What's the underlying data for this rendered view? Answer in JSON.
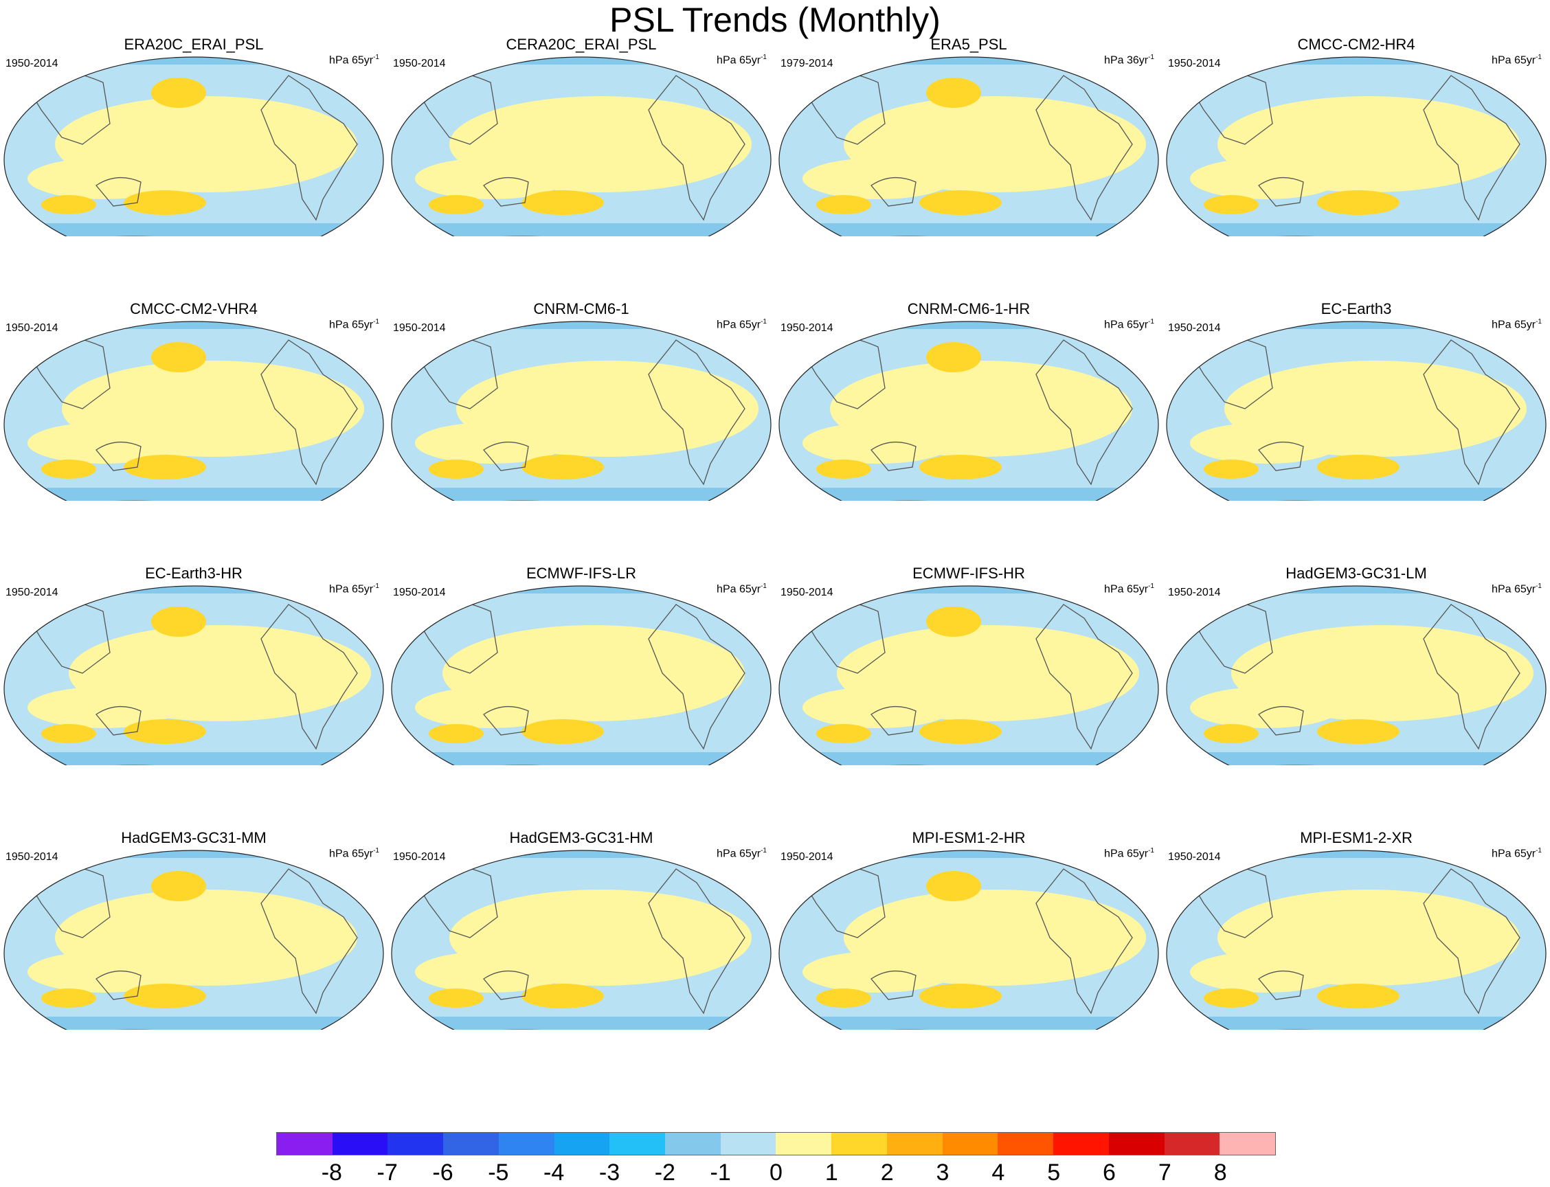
{
  "title": "PSL Trends (Monthly)",
  "panels": [
    {
      "name": "ERA20C_ERAI_PSL",
      "period": "1950-2014",
      "units_base": "hPa 65yr",
      "units_exp": "-1"
    },
    {
      "name": "CERA20C_ERAI_PSL",
      "period": "1950-2014",
      "units_base": "hPa 65yr",
      "units_exp": "-1"
    },
    {
      "name": "ERA5_PSL",
      "period": "1979-2014",
      "units_base": "hPa 36yr",
      "units_exp": "-1"
    },
    {
      "name": "CMCC-CM2-HR4",
      "period": "1950-2014",
      "units_base": "hPa 65yr",
      "units_exp": "-1"
    },
    {
      "name": "CMCC-CM2-VHR4",
      "period": "1950-2014",
      "units_base": "hPa 65yr",
      "units_exp": "-1"
    },
    {
      "name": "CNRM-CM6-1",
      "period": "1950-2014",
      "units_base": "hPa 65yr",
      "units_exp": "-1"
    },
    {
      "name": "CNRM-CM6-1-HR",
      "period": "1950-2014",
      "units_base": "hPa 65yr",
      "units_exp": "-1"
    },
    {
      "name": "EC-Earth3",
      "period": "1950-2014",
      "units_base": "hPa 65yr",
      "units_exp": "-1"
    },
    {
      "name": "EC-Earth3-HR",
      "period": "1950-2014",
      "units_base": "hPa 65yr",
      "units_exp": "-1"
    },
    {
      "name": "ECMWF-IFS-LR",
      "period": "1950-2014",
      "units_base": "hPa 65yr",
      "units_exp": "-1"
    },
    {
      "name": "ECMWF-IFS-HR",
      "period": "1950-2014",
      "units_base": "hPa 65yr",
      "units_exp": "-1"
    },
    {
      "name": "HadGEM3-GC31-LM",
      "period": "1950-2014",
      "units_base": "hPa 65yr",
      "units_exp": "-1"
    },
    {
      "name": "HadGEM3-GC31-MM",
      "period": "1950-2014",
      "units_base": "hPa 65yr",
      "units_exp": "-1"
    },
    {
      "name": "HadGEM3-GC31-HM",
      "period": "1950-2014",
      "units_base": "hPa 65yr",
      "units_exp": "-1"
    },
    {
      "name": "MPI-ESM1-2-HR",
      "period": "1950-2014",
      "units_base": "hPa 65yr",
      "units_exp": "-1"
    },
    {
      "name": "MPI-ESM1-2-XR",
      "period": "1950-2014",
      "units_base": "hPa 65yr",
      "units_exp": "-1"
    }
  ],
  "colorbar": {
    "labels": [
      "-8",
      "-7",
      "-6",
      "-5",
      "-4",
      "-3",
      "-2",
      "-1",
      "0",
      "1",
      "2",
      "3",
      "4",
      "5",
      "6",
      "7",
      "8"
    ],
    "colors": [
      "#8a1ef0",
      "#2a0ef5",
      "#2234f0",
      "#3264e6",
      "#2f84f2",
      "#16a3f2",
      "#22c0f7",
      "#84c8ec",
      "#b8e1f3",
      "#fff7a0",
      "#ffd72a",
      "#ffb010",
      "#ff8b00",
      "#ff5500",
      "#ff1400",
      "#d80000",
      "#d62828",
      "#ffb4b4"
    ]
  }
}
